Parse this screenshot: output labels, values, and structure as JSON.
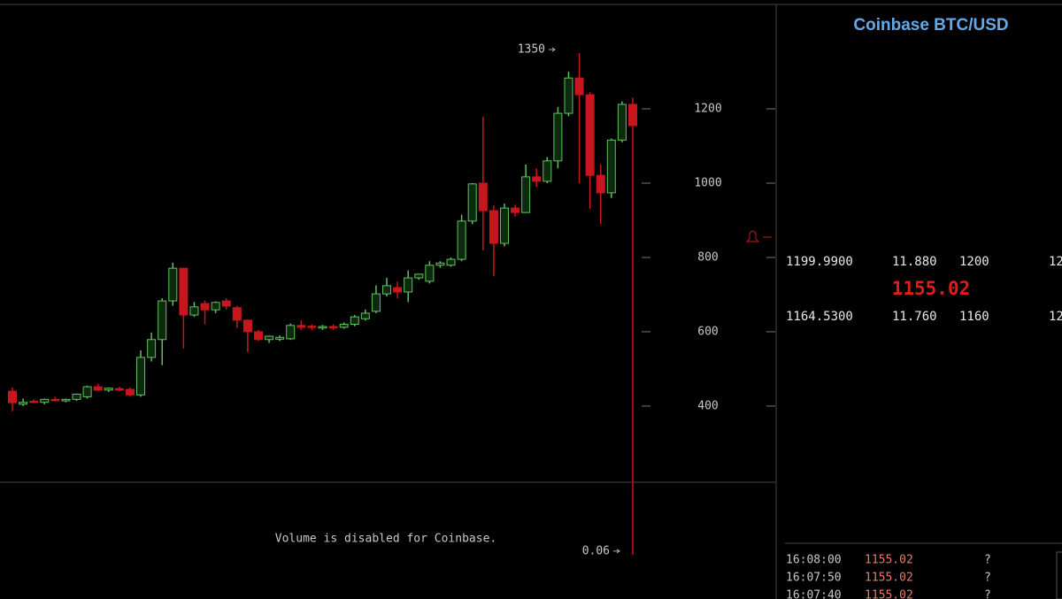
{
  "chart_data": {
    "type": "candlestick",
    "open": [
      440,
      405,
      413,
      410,
      418,
      414,
      418,
      425,
      452,
      443,
      447,
      445,
      430,
      531,
      579,
      683,
      771,
      645,
      676,
      659,
      683,
      665,
      631,
      600,
      579,
      580,
      581,
      617,
      615,
      610,
      614,
      612,
      620,
      635,
      655,
      702,
      719,
      707,
      745,
      736,
      779,
      779,
      795,
      898,
      1000,
      926,
      838,
      933,
      921,
      1017,
      1005,
      1060,
      1188,
      1283,
      1238,
      1021,
      974,
      1116,
      1212
    ],
    "high": [
      450,
      420,
      418,
      420,
      425,
      420,
      434,
      455,
      460,
      450,
      452,
      450,
      550,
      598,
      690,
      786,
      771,
      680,
      684,
      682,
      690,
      670,
      633,
      605,
      590,
      590,
      622,
      630,
      620,
      618,
      620,
      625,
      645,
      660,
      725,
      745,
      735,
      765,
      755,
      790,
      790,
      800,
      915,
      1000,
      1179,
      940,
      945,
      942,
      1050,
      1040,
      1070,
      1205,
      1300,
      1350,
      1245,
      1050,
      1120,
      1220,
      1230
    ],
    "low": [
      386,
      400,
      408,
      405,
      412,
      410,
      414,
      420,
      440,
      438,
      440,
      425,
      425,
      520,
      510,
      670,
      555,
      640,
      620,
      650,
      660,
      610,
      545,
      575,
      570,
      575,
      578,
      605,
      605,
      605,
      605,
      608,
      615,
      630,
      650,
      695,
      690,
      680,
      740,
      730,
      772,
      775,
      790,
      890,
      819,
      750,
      830,
      910,
      920,
      990,
      1000,
      1040,
      1180,
      1000,
      930,
      890,
      960,
      1110,
      0.06
    ],
    "close": [
      409,
      410,
      410,
      418,
      415,
      418,
      432,
      452,
      443,
      448,
      443,
      430,
      531,
      579,
      683,
      771,
      645,
      667,
      659,
      679,
      669,
      631,
      600,
      579,
      588,
      585,
      617,
      612,
      612,
      614,
      611,
      620,
      640,
      650,
      702,
      724,
      707,
      745,
      755,
      779,
      785,
      795,
      898,
      998,
      926,
      838,
      933,
      921,
      1017,
      1005,
      1060,
      1188,
      1283,
      1238,
      1021,
      974,
      1116,
      1212,
      1155
    ],
    "up_color": "#5fc25f",
    "down_color": "#c8161d",
    "ylim": [
      195,
      1493
    ],
    "yticks": [
      400,
      600,
      800,
      1000,
      1200
    ],
    "annotations": [
      {
        "value": 1350
      },
      {
        "value": 0.06
      }
    ],
    "note": "Volume is disabled for Coinbase."
  },
  "sidebar": {
    "title": "Coinbase BTC/USD",
    "order_book": [
      [
        "1199.9900",
        "11.880",
        "1200",
        "12"
      ],
      [
        "1164.5300",
        "11.760",
        "1160",
        "12"
      ]
    ],
    "last_price": "1155.02",
    "trades": [
      [
        "16:08:00",
        "1155.02",
        "?"
      ],
      [
        "16:07:50",
        "1155.02",
        "?"
      ],
      [
        "16:07:40",
        "1155.02",
        "?"
      ]
    ]
  }
}
